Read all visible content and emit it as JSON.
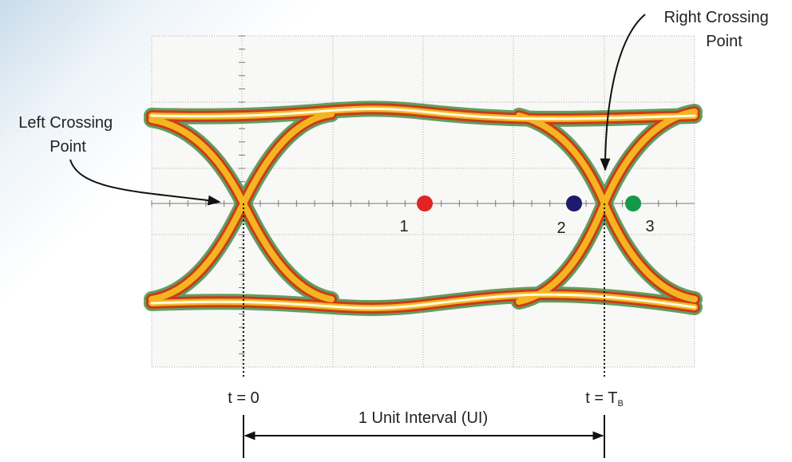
{
  "labels": {
    "left_crossing": [
      "Left Crossing",
      "Point"
    ],
    "right_crossing": [
      "Right Crossing",
      "Point"
    ]
  },
  "points": [
    "1",
    "2",
    "3"
  ],
  "time": {
    "start": "t = 0",
    "end": "t = T",
    "end_subscript": "B"
  },
  "interval": "1 Unit Interval (UI)"
}
